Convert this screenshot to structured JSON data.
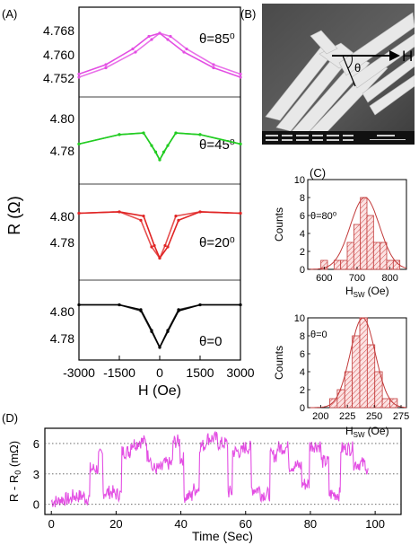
{
  "panel_labels": {
    "a": "(A)",
    "b": "(B)",
    "c": "(C)",
    "d": "(D)"
  },
  "panel_a": {
    "ylabel": "R (Ω)",
    "xlabel": "H (Oe)",
    "xticks": [
      "-3000",
      "-1500",
      "0",
      "1500",
      "3000"
    ],
    "subplots": [
      {
        "theta": "θ=85⁰",
        "yticks": [
          "4.768",
          "4.760",
          "4.752"
        ],
        "color": "#e34ee3"
      },
      {
        "theta": "θ=45⁰",
        "yticks": [
          "4.80",
          "4.78"
        ],
        "color": "#22cc22"
      },
      {
        "theta": "θ=20⁰",
        "yticks": [
          "4.80",
          "4.78"
        ],
        "color": "#e02424"
      },
      {
        "theta": "θ=0",
        "yticks": [
          "4.80",
          "4.78"
        ],
        "color": "#000000"
      }
    ]
  },
  "panel_b": {
    "h_label": "H",
    "theta_label": "θ"
  },
  "panel_c": [
    {
      "theta": "θ=80⁰",
      "ylabel": "Counts",
      "xlabel_main": "H",
      "xlabel_sub": "SW",
      "xlabel_unit": "(Oe)",
      "xticks": [
        "600",
        "700",
        "800"
      ],
      "yticks": [
        "0",
        "2",
        "4",
        "6",
        "8",
        "10"
      ]
    },
    {
      "theta": "θ=0",
      "ylabel": "Counts",
      "xlabel_main": "H",
      "xlabel_sub": "SW",
      "xlabel_unit": "(Oe)",
      "xticks": [
        "200",
        "225",
        "250",
        "275"
      ],
      "yticks": [
        "0",
        "2",
        "4",
        "6",
        "8",
        "10"
      ]
    }
  ],
  "chart_data": [
    {
      "type": "line",
      "panel": "A",
      "series": [
        {
          "name": "θ=85⁰",
          "x": [
            -3000,
            -2000,
            -1000,
            -400,
            0,
            300,
            900,
            2000,
            3000
          ],
          "y": [
            4.755,
            4.758,
            4.763,
            4.767,
            4.768,
            4.766,
            4.762,
            4.757,
            4.754
          ]
        },
        {
          "name": "θ=45⁰",
          "x": [
            -3000,
            -1500,
            -600,
            -150,
            0,
            300,
            600,
            1500,
            3000
          ],
          "y": [
            4.782,
            4.788,
            4.789,
            4.777,
            4.772,
            4.781,
            4.789,
            4.788,
            4.782
          ]
        },
        {
          "name": "θ=20⁰",
          "x": [
            -3000,
            -1500,
            -600,
            -200,
            0,
            300,
            700,
            1500,
            3000
          ],
          "y": [
            4.8,
            4.801,
            4.798,
            4.777,
            4.768,
            4.776,
            4.795,
            4.801,
            4.8
          ]
        },
        {
          "name": "θ=0",
          "x": [
            -3000,
            -1500,
            -700,
            -300,
            0,
            300,
            700,
            1500,
            3000
          ],
          "y": [
            4.801,
            4.801,
            4.797,
            4.78,
            4.766,
            4.779,
            4.796,
            4.801,
            4.801
          ]
        }
      ],
      "xlabel": "H (Oe)",
      "ylabel": "R (Ω)",
      "xlim": [
        -3000,
        3000
      ]
    },
    {
      "type": "bar",
      "panel": "C",
      "title": "θ=80⁰",
      "x": [
        600,
        620,
        640,
        660,
        680,
        700,
        720,
        740,
        760,
        780,
        800,
        820
      ],
      "values": [
        1,
        0,
        1,
        1,
        3,
        5,
        8,
        6,
        3,
        3,
        1,
        1
      ],
      "xlim": [
        550,
        850
      ],
      "ylim": [
        0,
        10
      ],
      "xlabel": "HSW (Oe)",
      "ylabel": "Counts"
    },
    {
      "type": "bar",
      "panel": "C",
      "title": "θ=0",
      "x": [
        205,
        212,
        219,
        226,
        233,
        240,
        247,
        254,
        261,
        268
      ],
      "values": [
        0,
        1,
        2,
        4,
        8,
        10,
        7,
        4,
        1,
        1
      ],
      "xlim": [
        188,
        280
      ],
      "ylim": [
        0,
        10
      ],
      "xlabel": "HSW (Oe)",
      "ylabel": "Counts"
    },
    {
      "type": "line",
      "panel": "D",
      "xlabel": "Time (Sec)",
      "ylabel": "R - R0 (mΩ)",
      "xlim": [
        -2,
        108
      ],
      "ylim": [
        -1,
        7.5
      ],
      "xticks": [
        "0",
        "20",
        "40",
        "60",
        "80",
        "100"
      ],
      "yticks": [
        "6",
        "3",
        "0"
      ],
      "series": [
        {
          "name": "",
          "x": [
            0,
            3,
            7,
            11,
            12,
            15,
            16,
            20,
            22,
            25,
            27,
            30,
            31,
            35,
            38,
            40,
            41,
            44,
            46,
            48,
            52,
            55,
            56,
            60,
            62,
            65,
            68,
            70,
            74,
            78,
            80,
            84,
            86,
            90,
            94,
            98
          ],
          "y": [
            0.3,
            0.5,
            0.8,
            0.6,
            3.5,
            4.8,
            1.2,
            1.0,
            5.2,
            6.0,
            6.2,
            4.8,
            3.5,
            4.0,
            6.2,
            4.5,
            0.8,
            1.5,
            5.8,
            6.5,
            6.0,
            1.2,
            5.2,
            5.6,
            1.5,
            1.0,
            4.8,
            5.6,
            3.8,
            2.0,
            5.8,
            4.2,
            1.0,
            5.5,
            4.0,
            3.2
          ]
        }
      ]
    }
  ]
}
